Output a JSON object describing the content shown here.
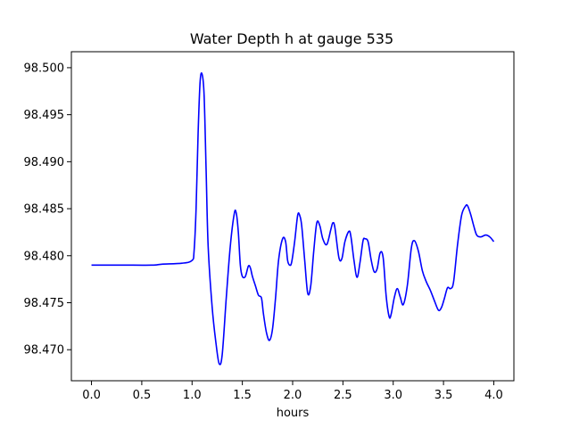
{
  "chart_data": {
    "type": "line",
    "title": "Water Depth h at gauge 535",
    "xlabel": "hours",
    "ylabel": "",
    "xlim": [
      -0.2,
      4.2
    ],
    "ylim": [
      98.4667,
      98.5017
    ],
    "xticks": [
      0.0,
      0.5,
      1.0,
      1.5,
      2.0,
      2.5,
      3.0,
      3.5,
      4.0
    ],
    "xtick_labels": [
      "0.0",
      "0.5",
      "1.0",
      "1.5",
      "2.0",
      "2.5",
      "3.0",
      "3.5",
      "4.0"
    ],
    "yticks": [
      98.47,
      98.475,
      98.48,
      98.485,
      98.49,
      98.495,
      98.5
    ],
    "ytick_labels": [
      "98.470",
      "98.475",
      "98.480",
      "98.485",
      "98.490",
      "98.495",
      "98.500"
    ],
    "grid": false,
    "series": [
      {
        "color": "#0000ff",
        "x": [
          0.0,
          0.3,
          0.6,
          0.7,
          0.9,
          1.0,
          1.02,
          1.04,
          1.06,
          1.08,
          1.1,
          1.12,
          1.14,
          1.16,
          1.2,
          1.24,
          1.27,
          1.3,
          1.34,
          1.38,
          1.42,
          1.44,
          1.46,
          1.48,
          1.5,
          1.53,
          1.56,
          1.58,
          1.6,
          1.63,
          1.66,
          1.69,
          1.71,
          1.74,
          1.77,
          1.8,
          1.83,
          1.86,
          1.9,
          1.93,
          1.95,
          1.97,
          1.99,
          2.02,
          2.05,
          2.07,
          2.09,
          2.12,
          2.15,
          2.18,
          2.21,
          2.24,
          2.27,
          2.3,
          2.34,
          2.38,
          2.4,
          2.42,
          2.46,
          2.49,
          2.52,
          2.56,
          2.58,
          2.61,
          2.64,
          2.67,
          2.7,
          2.72,
          2.75,
          2.78,
          2.81,
          2.84,
          2.87,
          2.9,
          2.93,
          2.96,
          2.98,
          3.01,
          3.04,
          3.07,
          3.1,
          3.14,
          3.18,
          3.21,
          3.25,
          3.29,
          3.33,
          3.37,
          3.41,
          3.45,
          3.48,
          3.51,
          3.54,
          3.57,
          3.6,
          3.64,
          3.68,
          3.72,
          3.74,
          3.77,
          3.8,
          3.83,
          3.87,
          3.92,
          3.96,
          4.0
        ],
        "y": [
          98.479,
          98.479,
          98.479,
          98.4791,
          98.4792,
          98.4795,
          98.4805,
          98.485,
          98.493,
          98.4985,
          98.4993,
          98.497,
          98.489,
          98.481,
          98.4745,
          98.4705,
          98.4685,
          98.4695,
          98.4755,
          98.481,
          98.4845,
          98.4845,
          98.4825,
          98.479,
          98.4778,
          98.4778,
          98.4789,
          98.4787,
          98.4778,
          98.4768,
          98.4758,
          98.4755,
          98.4738,
          98.4718,
          98.471,
          98.4722,
          98.4755,
          98.4795,
          98.4818,
          98.4815,
          98.4795,
          98.479,
          98.4793,
          98.4815,
          98.4843,
          98.4843,
          98.4832,
          98.4795,
          98.476,
          98.4768,
          98.4805,
          98.4835,
          98.4832,
          98.4818,
          98.4812,
          98.4828,
          98.4835,
          98.483,
          98.4798,
          98.4797,
          98.4815,
          98.4826,
          98.482,
          98.4795,
          98.4777,
          98.4793,
          98.4816,
          98.4818,
          98.4815,
          98.4796,
          98.4783,
          98.4786,
          98.4803,
          98.4798,
          98.4757,
          98.4735,
          98.4738,
          98.4755,
          98.4765,
          98.4756,
          98.4748,
          98.4768,
          98.4808,
          98.4816,
          98.4805,
          98.4784,
          98.4772,
          98.4763,
          98.4752,
          98.4742,
          98.4745,
          98.4755,
          98.4766,
          98.4765,
          98.4772,
          98.4812,
          98.4843,
          98.4853,
          98.4853,
          98.4844,
          98.4832,
          98.4822,
          98.482,
          98.4822,
          98.482,
          98.4815
        ]
      }
    ]
  }
}
